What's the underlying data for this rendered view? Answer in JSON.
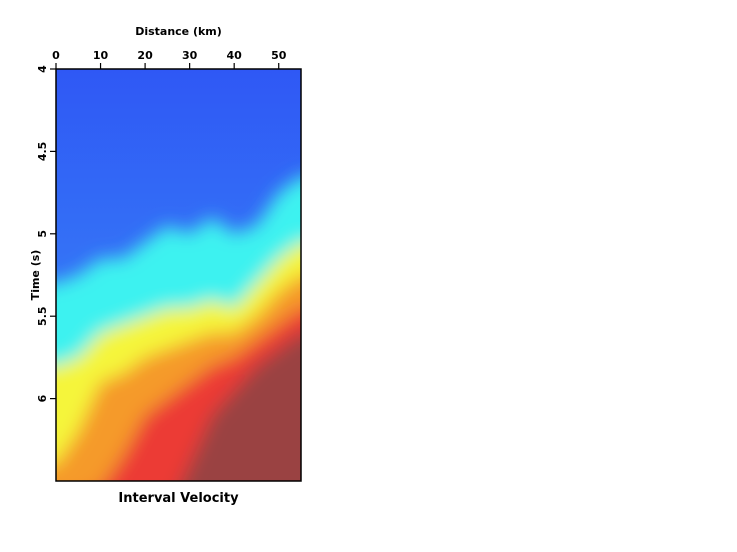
{
  "chart_data": {
    "type": "heatmap",
    "title": "Interval Velocity",
    "xlabel": "Distance (km)",
    "ylabel": "Time (s)",
    "xlim": [
      0,
      55
    ],
    "ylim": [
      4,
      6.5
    ],
    "y_inverted": true,
    "x_axis_position": "top",
    "grid": false,
    "colormap": [
      "#2f58f5",
      "#3aa0f8",
      "#3ef2f0",
      "#f5f53a",
      "#f59a2a",
      "#ec3a34",
      "#9a4242"
    ],
    "x_ticks": [
      {
        "value": 0,
        "label": "0"
      },
      {
        "value": 10,
        "label": "10"
      },
      {
        "value": 20,
        "label": "20"
      },
      {
        "value": 30,
        "label": "30"
      },
      {
        "value": 40,
        "label": "40"
      },
      {
        "value": 50,
        "label": "50"
      }
    ],
    "y_ticks": [
      {
        "value": 4,
        "label": "4"
      },
      {
        "value": 4.5,
        "label": "4.5"
      },
      {
        "value": 5,
        "label": "5"
      },
      {
        "value": 5.5,
        "label": "5.5"
      },
      {
        "value": 6,
        "label": "6"
      }
    ],
    "bands": [
      {
        "name": "cyan",
        "color": "#3ef2f0",
        "x": [
          0,
          5,
          10,
          15,
          20,
          25,
          30,
          35,
          40,
          45,
          50,
          55
        ],
        "y": [
          5.3,
          5.25,
          5.15,
          5.15,
          5.05,
          4.95,
          5.0,
          4.9,
          5.0,
          4.95,
          4.75,
          4.65
        ]
      },
      {
        "name": "yellow",
        "color": "#f5f53a",
        "x": [
          0,
          5,
          10,
          15,
          20,
          25,
          30,
          35,
          40,
          45,
          50,
          55
        ],
        "y": [
          5.8,
          5.75,
          5.6,
          5.55,
          5.5,
          5.45,
          5.45,
          5.4,
          5.45,
          5.3,
          5.15,
          5.05
        ]
      },
      {
        "name": "orange",
        "color": "#f59a2a",
        "x": [
          0,
          5,
          10,
          15,
          20,
          25,
          30,
          35,
          40,
          45,
          50,
          55
        ],
        "y": [
          6.4,
          6.2,
          5.9,
          5.85,
          5.75,
          5.7,
          5.65,
          5.6,
          5.6,
          5.5,
          5.35,
          5.25
        ]
      },
      {
        "name": "red",
        "color": "#ec3a34",
        "x": [
          0,
          5,
          10,
          15,
          20,
          25,
          30,
          35,
          40,
          45,
          50,
          55
        ],
        "y": [
          6.6,
          6.6,
          6.55,
          6.35,
          6.1,
          6.0,
          5.9,
          5.8,
          5.75,
          5.65,
          5.55,
          5.45
        ]
      },
      {
        "name": "dark-red",
        "color": "#9a4242",
        "x": [
          0,
          5,
          10,
          15,
          20,
          25,
          30,
          35,
          40,
          45,
          50,
          55
        ],
        "y": [
          7.0,
          7.0,
          7.0,
          7.0,
          6.9,
          6.7,
          6.4,
          6.1,
          5.95,
          5.8,
          5.7,
          5.6
        ]
      }
    ]
  }
}
